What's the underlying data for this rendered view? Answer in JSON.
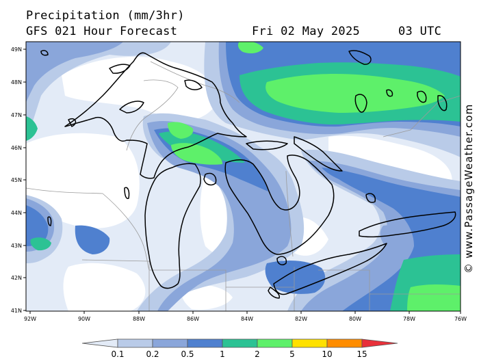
{
  "header": {
    "title": "Precipitation (mm/3hr)",
    "model": "GFS 021 Hour Forecast",
    "date": "Fri 02 May 2025",
    "time": "03 UTC"
  },
  "credit": "© www.PassageWeather.com",
  "latitude_labels": [
    "49N",
    "48N",
    "47N",
    "46N",
    "45N",
    "44N",
    "43N",
    "42N",
    "41N"
  ],
  "longitude_labels": [
    "92W",
    "90W",
    "88W",
    "86W",
    "84W",
    "82W",
    "80W",
    "78W",
    "76W"
  ],
  "legend": {
    "levels": [
      "0.1",
      "0.2",
      "0.5",
      "1",
      "2",
      "5",
      "10",
      "15"
    ],
    "colors": [
      "#e3ebf7",
      "#b9cbe8",
      "#8aa6da",
      "#4f80cf",
      "#2cc294",
      "#5ef06a",
      "#ffe100",
      "#ff8d00",
      "#e8313b"
    ]
  },
  "map": {
    "region": "Great Lakes",
    "lat_range": [
      41,
      49
    ],
    "lon_range": [
      -92,
      -76
    ],
    "unit": "mm/3hr"
  }
}
